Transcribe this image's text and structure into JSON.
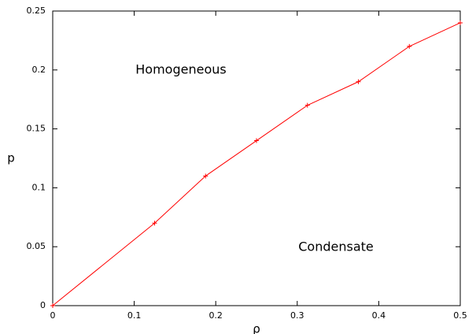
{
  "chart_data": {
    "type": "line",
    "x": [
      0,
      0.125,
      0.1875,
      0.25,
      0.3125,
      0.375,
      0.4375,
      0.5
    ],
    "series": [
      {
        "color": "#ff0000",
        "values": [
          0,
          0.07,
          0.11,
          0.14,
          0.17,
          0.19,
          0.22,
          0.24
        ]
      }
    ],
    "xlabel": "ρ",
    "ylabel": "p",
    "xlim": [
      0,
      0.5
    ],
    "ylim": [
      0,
      0.25
    ],
    "xticks": [
      0,
      0.1,
      0.2,
      0.3,
      0.4,
      0.5
    ],
    "yticks": [
      0,
      0.05,
      0.1,
      0.15,
      0.2,
      0.25
    ],
    "annotations": [
      "Homogeneous",
      "Condensate"
    ],
    "grid": false,
    "markers": "plus"
  }
}
